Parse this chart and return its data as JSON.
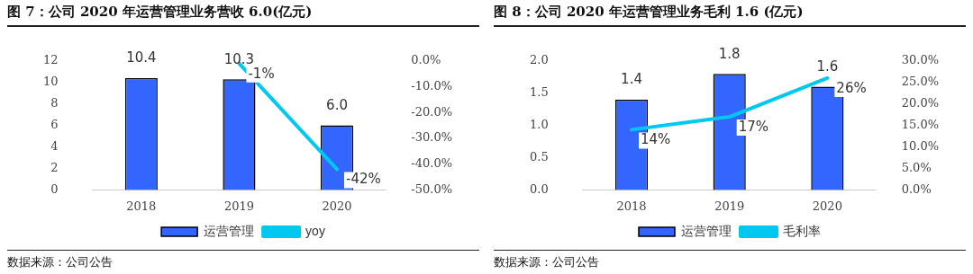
{
  "chart_data": [
    {
      "type": "bar",
      "title": "图 7：公司 2020 年运营管理业务营收 6.0(亿元)",
      "categories": [
        "2018",
        "2019",
        "2020"
      ],
      "series": [
        {
          "name": "运营管理",
          "color": "#3366ff",
          "values": [
            10.4,
            10.3,
            6.0
          ],
          "value_labels": [
            "10.4",
            "10.3",
            "6.0"
          ]
        },
        {
          "name": "yoy",
          "type": "line",
          "axis": "y2",
          "color": "#00c8f0",
          "values": [
            null,
            -1,
            -42
          ],
          "value_labels": [
            null,
            "-1%",
            "-42%"
          ]
        }
      ],
      "ylim": [
        0,
        12
      ],
      "yticks": [
        0,
        2,
        4,
        6,
        8,
        10,
        12
      ],
      "y2lim": [
        -50,
        0
      ],
      "y2ticks": [
        {
          "value": 0,
          "label": "0.0%"
        },
        {
          "value": -10,
          "label": "-10.0%"
        },
        {
          "value": -20,
          "label": "-20.0%"
        },
        {
          "value": -30,
          "label": "-30.0%"
        },
        {
          "value": -40,
          "label": "-40.0%"
        },
        {
          "value": -50,
          "label": "-50.0%"
        }
      ],
      "grid": false,
      "legend": "bottom",
      "marker": "none",
      "line_style": "solid",
      "annotations": [
        "数据来源：公司公告"
      ]
    },
    {
      "type": "bar",
      "title": "图 8：公司 2020 年运营管理业务毛利 1.6 (亿元)",
      "categories": [
        "2018",
        "2019",
        "2020"
      ],
      "series": [
        {
          "name": "运营管理",
          "color": "#3366ff",
          "values": [
            1.4,
            1.8,
            1.6
          ],
          "value_labels": [
            "1.4",
            "1.8",
            "1.6"
          ]
        },
        {
          "name": "毛利率",
          "type": "line",
          "axis": "y2",
          "color": "#00c8f0",
          "values": [
            14,
            17,
            26
          ],
          "value_labels": [
            "14%",
            "17%",
            "26%"
          ]
        }
      ],
      "ylim": [
        0,
        2.0
      ],
      "yticks": [
        {
          "value": 0,
          "label": "0.0"
        },
        {
          "value": 0.5,
          "label": "0.5"
        },
        {
          "value": 1.0,
          "label": "1.0"
        },
        {
          "value": 1.5,
          "label": "1.5"
        },
        {
          "value": 2.0,
          "label": "2.0"
        }
      ],
      "y2lim": [
        0,
        30
      ],
      "y2ticks": [
        {
          "value": 0,
          "label": "0.0%"
        },
        {
          "value": 5,
          "label": "5.0%"
        },
        {
          "value": 10,
          "label": "10.0%"
        },
        {
          "value": 15,
          "label": "15.0%"
        },
        {
          "value": 20,
          "label": "20.0%"
        },
        {
          "value": 25,
          "label": "25.0%"
        },
        {
          "value": 30,
          "label": "30.0%"
        }
      ],
      "grid": false,
      "legend": "bottom",
      "marker": "none",
      "line_style": "solid",
      "annotations": [
        "数据来源：公司公告"
      ]
    }
  ]
}
